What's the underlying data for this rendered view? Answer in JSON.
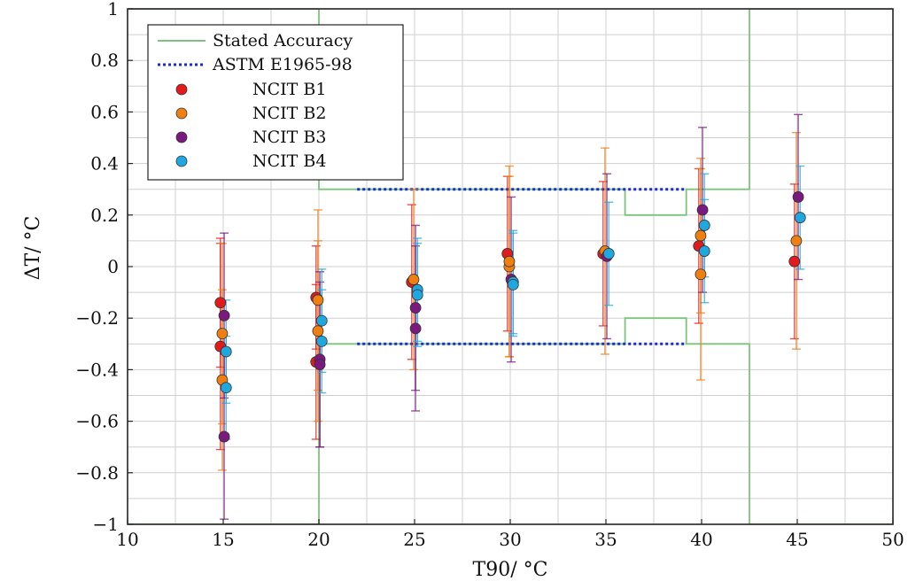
{
  "chart_data": {
    "type": "scatter",
    "xlabel": "T90/ °C",
    "ylabel": "ΔT/ °C",
    "xlim": [
      10,
      50
    ],
    "ylim": [
      -1,
      1
    ],
    "xticks": [
      "10",
      "15",
      "20",
      "25",
      "30",
      "35",
      "40",
      "45",
      "50"
    ],
    "yticks": [
      "−1",
      "−0.8",
      "−0.6",
      "−0.4",
      "−0.2",
      "0",
      "0.2",
      "0.4",
      "0.6",
      "0.8",
      "1"
    ],
    "grid": true,
    "legend_position": "top-left",
    "colors": {
      "stated_accuracy": "#7cc47c",
      "astm": "#1d2bd6",
      "NCIT B1": "#e31a1c",
      "NCIT B2": "#f07f12",
      "NCIT B3": "#7a1a7f",
      "NCIT B4": "#1fa8e0"
    },
    "lines": [
      {
        "name": "Stated Accuracy",
        "style": "solid",
        "upper": [
          [
            10,
            1
          ],
          [
            20,
            1
          ],
          [
            20,
            0.3
          ],
          [
            36,
            0.3
          ],
          [
            36,
            0.2
          ],
          [
            39.2,
            0.2
          ],
          [
            39.2,
            0.3
          ],
          [
            42.5,
            0.3
          ],
          [
            42.5,
            1
          ],
          [
            50,
            1
          ]
        ],
        "lower": [
          [
            10,
            -1
          ],
          [
            20,
            -1
          ],
          [
            20,
            -0.3
          ],
          [
            36,
            -0.3
          ],
          [
            36,
            -0.2
          ],
          [
            39.2,
            -0.2
          ],
          [
            39.2,
            -0.3
          ],
          [
            42.5,
            -0.3
          ],
          [
            42.5,
            -1
          ],
          [
            50,
            -1
          ]
        ]
      },
      {
        "name": "ASTM E1965-98",
        "style": "dotted",
        "upper": [
          [
            22,
            0.3
          ],
          [
            39.2,
            0.3
          ]
        ],
        "lower": [
          [
            22,
            -0.3
          ],
          [
            39.2,
            -0.3
          ]
        ]
      }
    ],
    "series": [
      {
        "name": "NCIT B1",
        "points": [
          {
            "x": 15,
            "y": -0.14,
            "err": 0.25
          },
          {
            "x": 15,
            "y": -0.31,
            "err": 0.4
          },
          {
            "x": 20,
            "y": -0.12,
            "err": 0.2
          },
          {
            "x": 20,
            "y": -0.37,
            "err": 0.3
          },
          {
            "x": 25,
            "y": -0.06,
            "err": 0.3
          },
          {
            "x": 30,
            "y": 0.05,
            "err": 0.3
          },
          {
            "x": 35,
            "y": 0.05,
            "err": 0.28
          },
          {
            "x": 40,
            "y": 0.08,
            "err": 0.3
          },
          {
            "x": 45,
            "y": 0.02,
            "err": 0.3
          }
        ]
      },
      {
        "name": "NCIT B2",
        "points": [
          {
            "x": 15,
            "y": -0.26,
            "err": 0.35
          },
          {
            "x": 15,
            "y": -0.44,
            "err": 0.35
          },
          {
            "x": 20,
            "y": -0.13,
            "err": 0.35
          },
          {
            "x": 20,
            "y": -0.25,
            "err": 0.35
          },
          {
            "x": 25,
            "y": -0.05,
            "err": 0.35
          },
          {
            "x": 30,
            "y": 0.0,
            "err": 0.35
          },
          {
            "x": 30,
            "y": 0.02,
            "err": 0.37
          },
          {
            "x": 35,
            "y": 0.06,
            "err": 0.4
          },
          {
            "x": 40,
            "y": 0.12,
            "err": 0.3
          },
          {
            "x": 40,
            "y": -0.03,
            "err": 0.41
          },
          {
            "x": 45,
            "y": 0.1,
            "err": 0.42
          }
        ]
      },
      {
        "name": "NCIT B3",
        "points": [
          {
            "x": 15,
            "y": -0.19,
            "err": 0.32
          },
          {
            "x": 15,
            "y": -0.66,
            "err": 0.32
          },
          {
            "x": 20,
            "y": -0.36,
            "err": 0.34
          },
          {
            "x": 20,
            "y": -0.38,
            "err": 0.32
          },
          {
            "x": 25,
            "y": -0.16,
            "err": 0.32
          },
          {
            "x": 25,
            "y": -0.24,
            "err": 0.32
          },
          {
            "x": 30,
            "y": -0.05,
            "err": 0.32
          },
          {
            "x": 35,
            "y": 0.04,
            "err": 0.32
          },
          {
            "x": 40,
            "y": 0.22,
            "err": 0.32
          },
          {
            "x": 45,
            "y": 0.27,
            "err": 0.32
          }
        ]
      },
      {
        "name": "NCIT B4",
        "points": [
          {
            "x": 15,
            "y": -0.33,
            "err": 0.2
          },
          {
            "x": 15,
            "y": -0.47,
            "err": 0.2
          },
          {
            "x": 20,
            "y": -0.21,
            "err": 0.2
          },
          {
            "x": 20,
            "y": -0.29,
            "err": 0.2
          },
          {
            "x": 25,
            "y": -0.09,
            "err": 0.2
          },
          {
            "x": 25,
            "y": -0.11,
            "err": 0.2
          },
          {
            "x": 30,
            "y": -0.06,
            "err": 0.2
          },
          {
            "x": 30,
            "y": -0.07,
            "err": 0.2
          },
          {
            "x": 35,
            "y": 0.05,
            "err": 0.2
          },
          {
            "x": 40,
            "y": 0.16,
            "err": 0.2
          },
          {
            "x": 40,
            "y": 0.06,
            "err": 0.2
          },
          {
            "x": 45,
            "y": 0.19,
            "err": 0.2
          }
        ]
      }
    ]
  }
}
